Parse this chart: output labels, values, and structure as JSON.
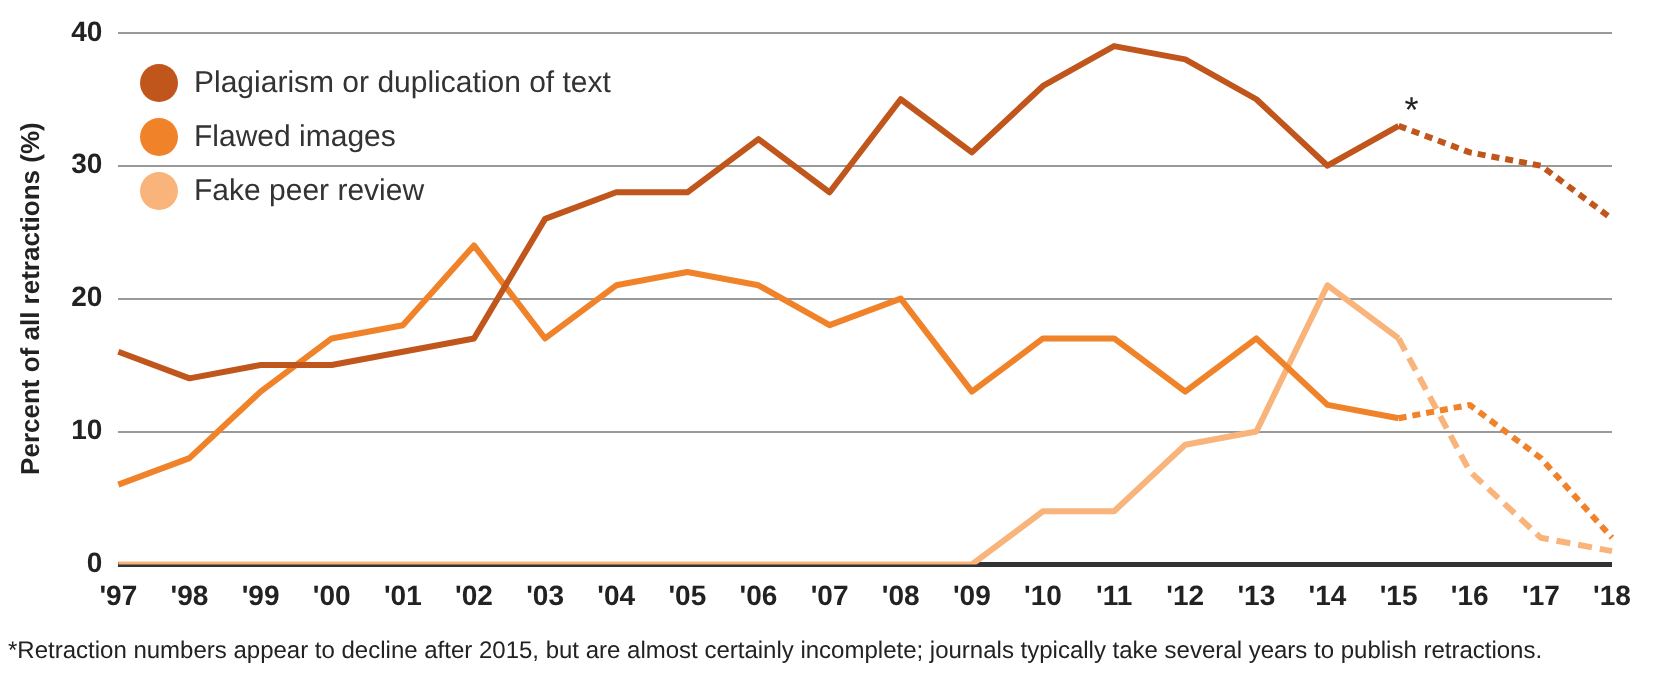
{
  "chart_data": {
    "type": "line",
    "ylabel": "Percent of all retractions (%)",
    "categories": [
      "'97",
      "'98",
      "'99",
      "'00",
      "'01",
      "'02",
      "'03",
      "'04",
      "'05",
      "'06",
      "'07",
      "'08",
      "'09",
      "'10",
      "'11",
      "'12",
      "'13",
      "'14",
      "'15",
      "'16",
      "'17",
      "'18"
    ],
    "series": [
      {
        "name": "Plagiarism or duplication of text",
        "color": "#c0561c",
        "line_style": "solid",
        "values": [
          16,
          14,
          15,
          15,
          16,
          17,
          26,
          28,
          28,
          32,
          28,
          35,
          31,
          36,
          39,
          38,
          35,
          30,
          33,
          null,
          null,
          null
        ]
      },
      {
        "name": "Flawed images",
        "color": "#f0822a",
        "line_style": "solid",
        "values": [
          6,
          8,
          13,
          17,
          18,
          24,
          17,
          21,
          22,
          21,
          18,
          20,
          13,
          17,
          17,
          13,
          17,
          12,
          11,
          null,
          null,
          null
        ]
      },
      {
        "name": "Fake peer review",
        "color": "#f9b47c",
        "line_style": "solid",
        "values": [
          0,
          0,
          0,
          0,
          0,
          0,
          0,
          0,
          0,
          0,
          0,
          0,
          0,
          4,
          4,
          9,
          10,
          21,
          17,
          null,
          null,
          null
        ]
      },
      {
        "color": "#c0561c",
        "line_style": "dotted",
        "values": [
          null,
          null,
          null,
          null,
          null,
          null,
          null,
          null,
          null,
          null,
          null,
          null,
          null,
          null,
          null,
          null,
          null,
          null,
          33,
          31,
          30,
          26
        ]
      },
      {
        "color": "#f0822a",
        "line_style": "dotted",
        "values": [
          null,
          null,
          null,
          null,
          null,
          null,
          null,
          null,
          null,
          null,
          null,
          null,
          null,
          null,
          null,
          null,
          null,
          null,
          11,
          12,
          8,
          2
        ]
      },
      {
        "color": "#f9b47c",
        "line_style": "dashed",
        "values": [
          null,
          null,
          null,
          null,
          null,
          null,
          null,
          null,
          null,
          null,
          null,
          null,
          null,
          null,
          null,
          null,
          null,
          null,
          17,
          7,
          2,
          1
        ]
      }
    ],
    "ylim": [
      0,
      40
    ],
    "yticks": [
      0,
      10,
      20,
      30,
      40
    ],
    "grid": "y",
    "legend": "top left",
    "marker": "none",
    "annotations": [
      {
        "text": "*",
        "x": "'15",
        "y": 33
      },
      "*Retraction numbers appear to decline after 2015, but are almost certainly incomplete; journals typically take several years to publish retractions."
    ]
  }
}
